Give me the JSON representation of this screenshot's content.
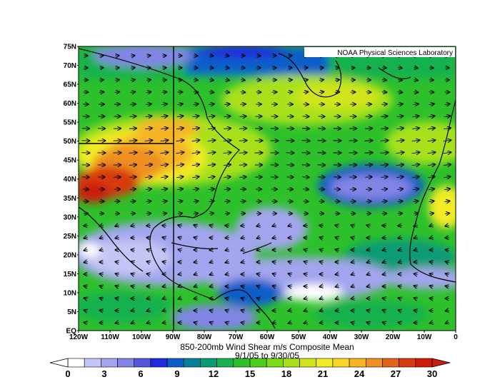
{
  "map": {
    "credit": "NOAA Physical Sciences Laboratory",
    "title_line1": "850-200mb Wind Shear m/s Composite Mean",
    "title_line2": "9/1/05  to  9/30/05",
    "lat_labels": [
      "75N",
      "70N",
      "65N",
      "60N",
      "55N",
      "50N",
      "45N",
      "40N",
      "35N",
      "30N",
      "25N",
      "20N",
      "15N",
      "10N",
      "5N",
      "EQ"
    ],
    "lon_labels": [
      "120W",
      "110W",
      "100W",
      "90W",
      "80W",
      "70W",
      "60W",
      "50W",
      "40W",
      "30W",
      "20W",
      "10W",
      "0"
    ]
  },
  "colorbar": {
    "labels": [
      "0",
      "3",
      "6",
      "9",
      "12",
      "15",
      "18",
      "21",
      "24",
      "27",
      "30"
    ],
    "colors": [
      "#ffffff",
      "#c4c6f5",
      "#a3a5ee",
      "#8284e6",
      "#5457d8",
      "#1f2bdb",
      "#0b5fc7",
      "#087f9a",
      "#0a9b76",
      "#19b150",
      "#2dc02b",
      "#4ccf1f",
      "#7bdc18",
      "#a8e11b",
      "#d3e41f",
      "#f3eb28",
      "#f9d628",
      "#f5b526",
      "#ee8f22",
      "#e26418",
      "#d63a10",
      "#cc1d0b"
    ]
  }
}
